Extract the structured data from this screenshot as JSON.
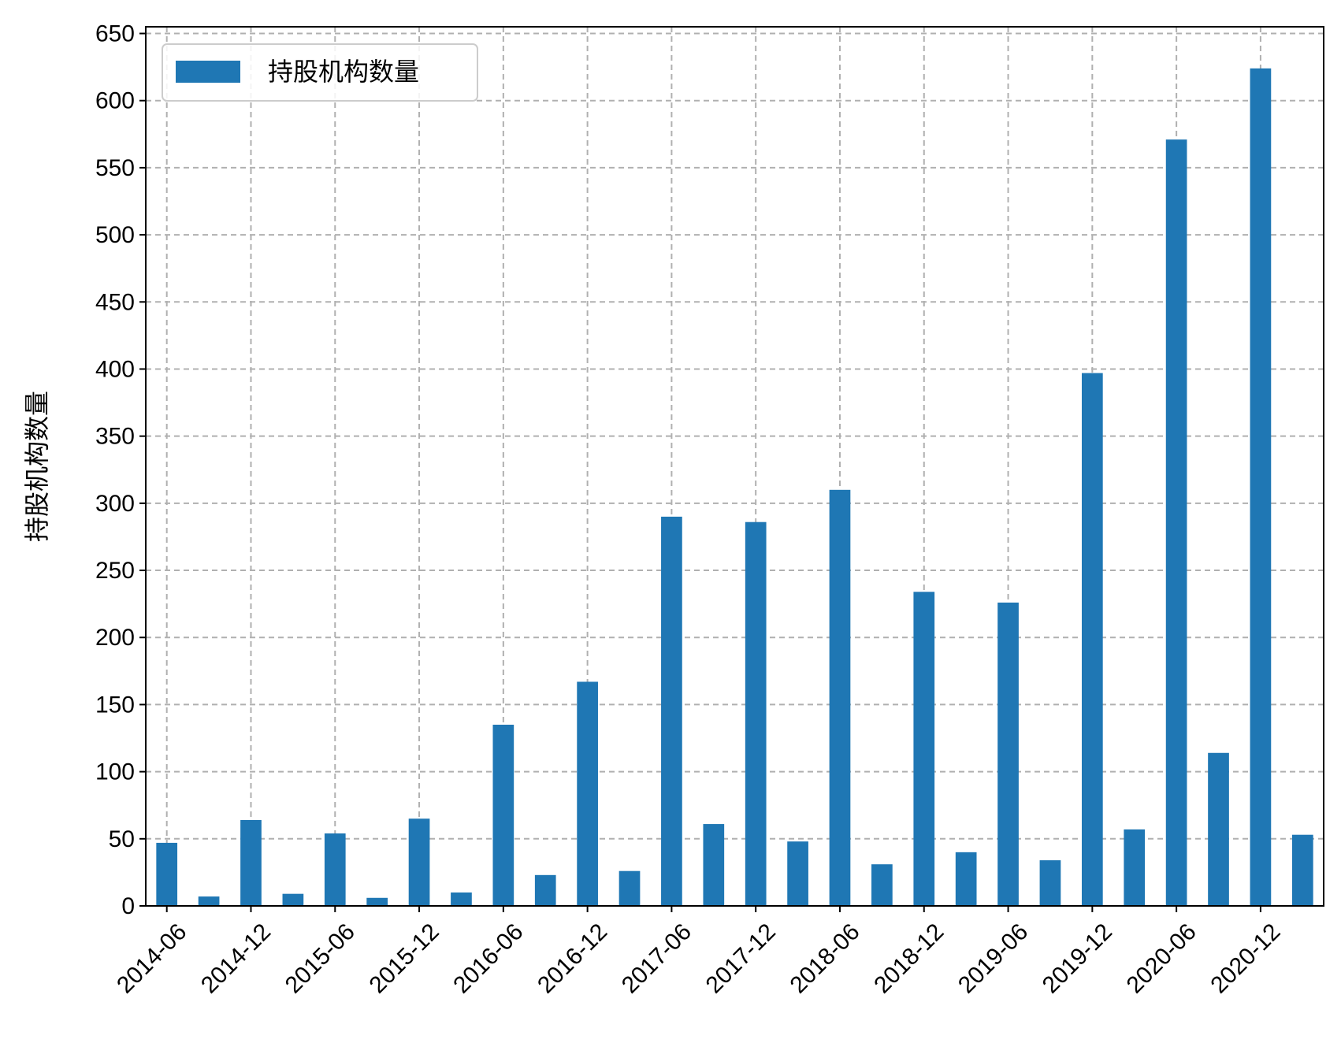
{
  "chart_data": {
    "type": "bar",
    "title": "",
    "xlabel": "",
    "ylabel": "持股机构数量",
    "ylim": [
      0,
      655
    ],
    "yticks": [
      0,
      50,
      100,
      150,
      200,
      250,
      300,
      350,
      400,
      450,
      500,
      550,
      600,
      650
    ],
    "grid": true,
    "legend_position": "top-left",
    "color": "#1f77b4",
    "categories": [
      "2014-06",
      "2014-09",
      "2014-12",
      "2015-03",
      "2015-06",
      "2015-09",
      "2015-12",
      "2016-03",
      "2016-06",
      "2016-09",
      "2016-12",
      "2017-03",
      "2017-06",
      "2017-09",
      "2017-12",
      "2018-03",
      "2018-06",
      "2018-09",
      "2018-12",
      "2019-03",
      "2019-06",
      "2019-09",
      "2019-12",
      "2020-03",
      "2020-06",
      "2020-09",
      "2020-12",
      "2021-03"
    ],
    "xtick_labels": [
      "2014-06",
      "",
      "2014-12",
      "",
      "2015-06",
      "",
      "2015-12",
      "",
      "2016-06",
      "",
      "2016-12",
      "",
      "2017-06",
      "",
      "2017-12",
      "",
      "2018-06",
      "",
      "2018-12",
      "",
      "2019-06",
      "",
      "2019-12",
      "",
      "2020-06",
      "",
      "2020-12",
      ""
    ],
    "series": [
      {
        "name": "持股机构数量",
        "values": [
          47,
          7,
          64,
          9,
          54,
          6,
          65,
          10,
          135,
          23,
          167,
          26,
          290,
          61,
          286,
          48,
          310,
          31,
          234,
          40,
          226,
          34,
          397,
          57,
          571,
          114,
          624,
          53
        ]
      }
    ]
  }
}
